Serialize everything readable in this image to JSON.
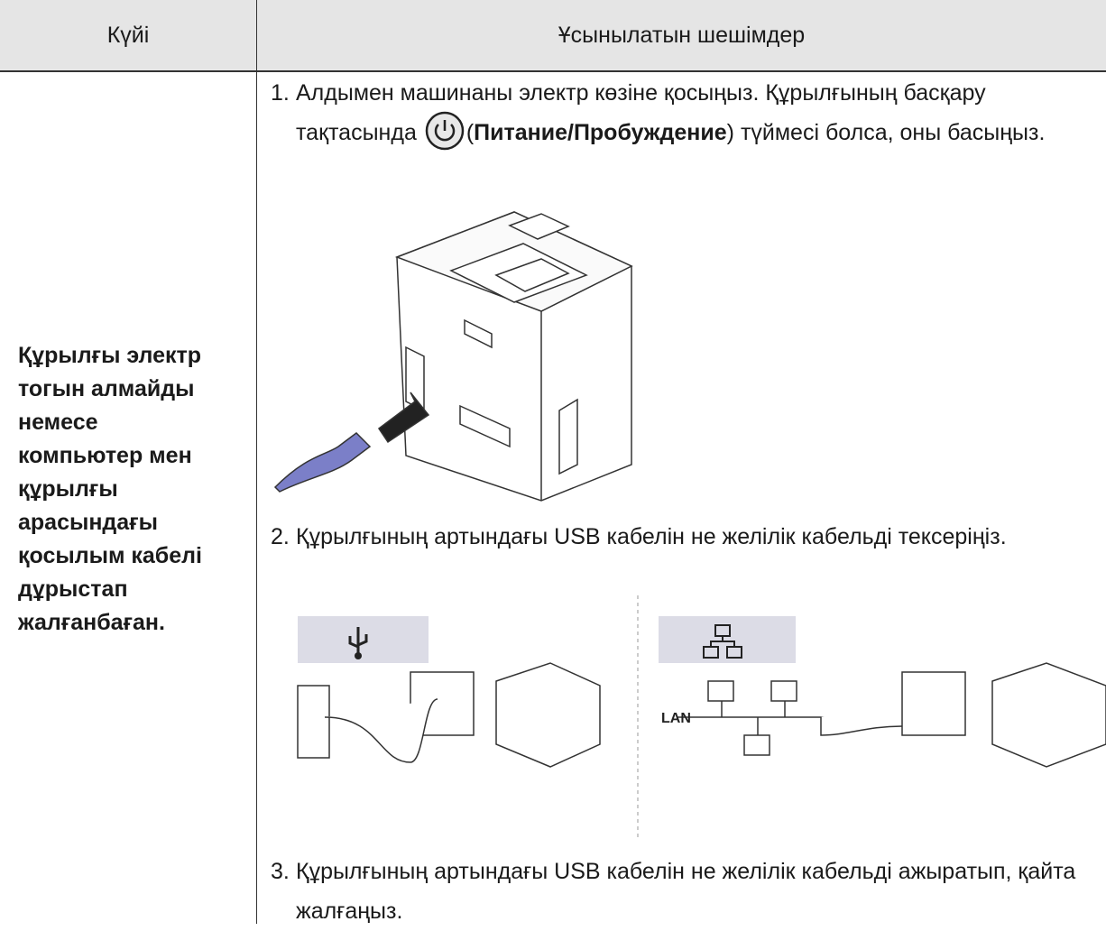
{
  "header": {
    "state": "Күйі",
    "solutions": "Ұсынылатын шешімдер"
  },
  "state_lines": [
    "Құрылғы электр",
    "тогын алмайды",
    "немесе",
    "компьютер мен",
    "құрылғы",
    "арасындағы",
    "қосылым кабелі",
    "дұрыстап",
    "жалғанбаған."
  ],
  "steps": [
    {
      "number": "1.",
      "before": "Алдымен машинаны электр көзіне қосыңыз. Құрылғының басқару тақтасында",
      "paren_open": "(",
      "button": "Питание/Пробуждение",
      "paren_close": ")",
      "after": "түймесі болса, оны басыңыз."
    },
    {
      "number": "2.",
      "text": "Құрылғының артындағы USB кабелін не желілік кабельді тексеріңіз.",
      "network_label": "LAN"
    },
    {
      "number": "3.",
      "text": "Құрылғының артындағы USB кабелін не желілік кабельді ажыратып, қайта жалғаңыз."
    }
  ]
}
